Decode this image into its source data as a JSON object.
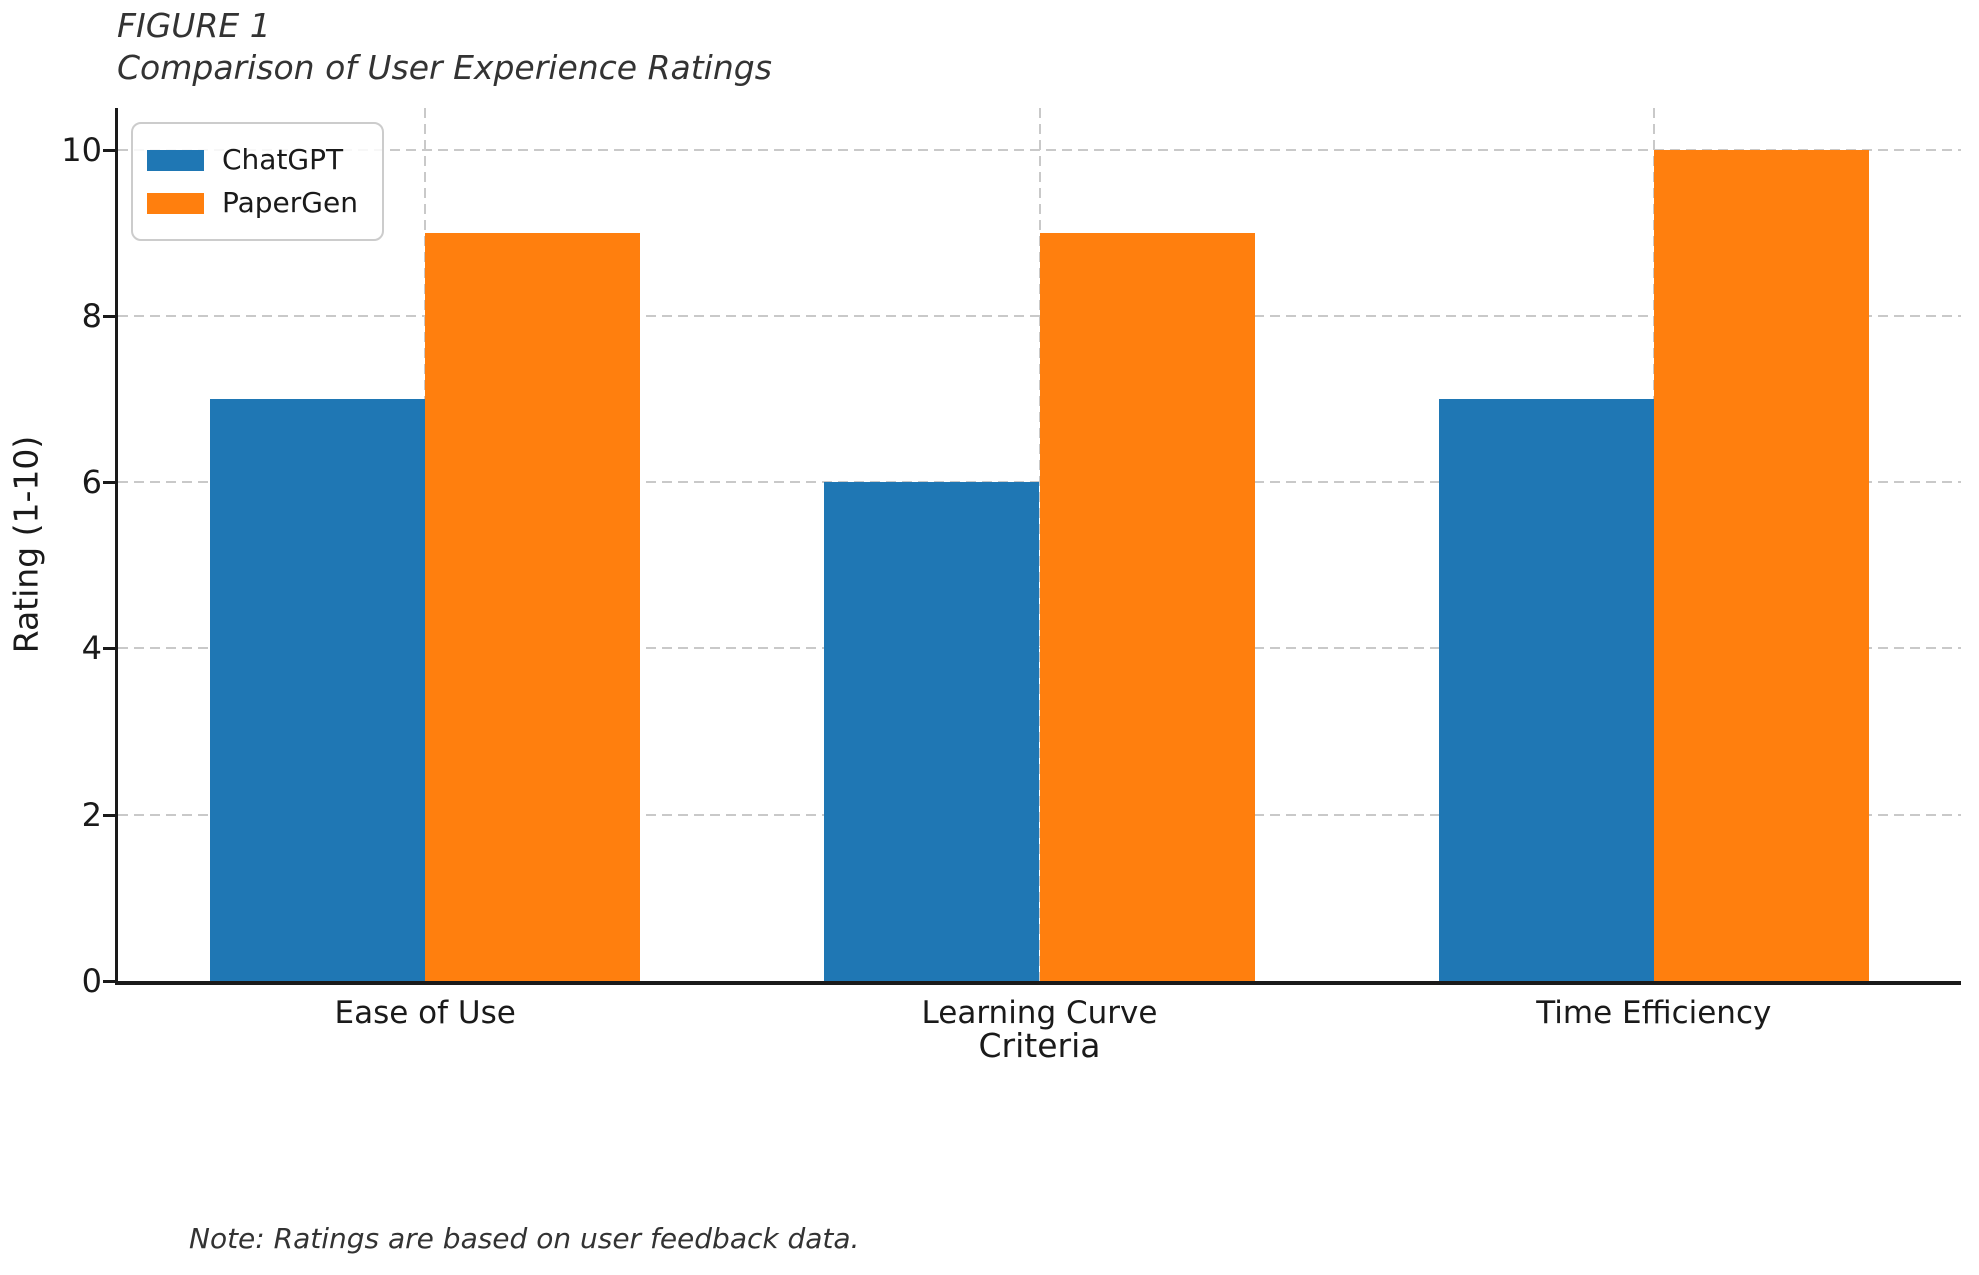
{
  "chart_data": {
    "type": "bar",
    "title_line1": "FIGURE 1",
    "title_line2": "Comparison of User Experience Ratings",
    "categories": [
      "Ease of Use",
      "Learning Curve",
      "Time Efficiency"
    ],
    "series": [
      {
        "name": "ChatGPT",
        "color": "#1f77b4",
        "values": [
          7,
          6,
          7
        ]
      },
      {
        "name": "PaperGen",
        "color": "#ff7f0e",
        "values": [
          9,
          9,
          10
        ]
      }
    ],
    "xlabel": "Criteria",
    "ylabel": "Rating (1-10)",
    "yticks": [
      0,
      2,
      4,
      6,
      8,
      10
    ],
    "ylim": [
      0,
      10.5
    ],
    "bar_width_frac": 0.35,
    "grid": "dashed-horizontal-and-vertical",
    "grid_color": "#c9c9c9",
    "legend_position": "upper left",
    "note": "Note: Ratings are based on user feedback data."
  }
}
